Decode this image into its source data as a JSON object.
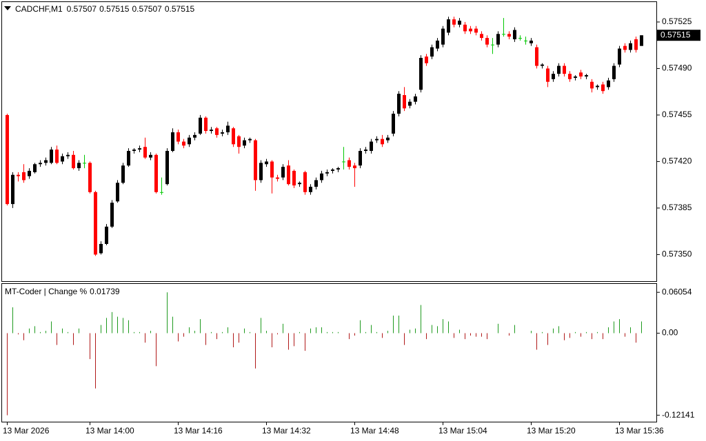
{
  "chart_data": [
    {
      "type": "candlestick",
      "title": "CADCHF,M1",
      "categories": [
        "13 Mar 2026",
        null,
        null,
        null,
        null,
        null,
        null,
        null,
        null,
        null,
        null,
        null,
        null,
        null,
        null,
        "13 Mar 14:00",
        null,
        null,
        null,
        null,
        null,
        null,
        null,
        null,
        null,
        null,
        null,
        null,
        null,
        null,
        null,
        "13 Mar 14:16",
        null,
        null,
        null,
        null,
        null,
        null,
        null,
        null,
        null,
        null,
        null,
        null,
        null,
        null,
        null,
        "13 Mar 14:32",
        null,
        null,
        null,
        null,
        null,
        null,
        null,
        null,
        null,
        null,
        null,
        null,
        null,
        null,
        null,
        "13 Mar 14:48",
        null,
        null,
        null,
        null,
        null,
        null,
        null,
        null,
        null,
        null,
        null,
        null,
        null,
        null,
        null,
        "13 Mar 15:04",
        null,
        null,
        null,
        null,
        null,
        null,
        null,
        null,
        null,
        null,
        null,
        null,
        null,
        null,
        null,
        "13 Mar 15:20",
        null,
        null,
        null,
        null,
        null,
        null,
        null,
        null,
        null,
        null,
        null,
        null,
        null,
        null,
        null,
        "13 Mar 15:36",
        null,
        null,
        null,
        null
      ],
      "open": [
        0.57455,
        0.57388,
        0.5741,
        0.57412,
        0.57409,
        0.57412,
        0.57418,
        0.57419,
        0.57419,
        0.57429,
        0.5742,
        0.57424,
        0.57425,
        0.57415,
        0.57419,
        0.57419,
        0.57397,
        0.57351,
        0.57358,
        0.57371,
        0.5739,
        0.57404,
        0.57417,
        0.57428,
        0.57429,
        0.57431,
        0.57423,
        0.57425,
        0.57397,
        0.57403,
        0.57428,
        0.57442,
        0.57435,
        0.57433,
        0.57438,
        0.57441,
        0.57453,
        0.57443,
        0.57445,
        0.57441,
        0.57442,
        0.57445,
        0.57439,
        0.57432,
        0.57436,
        0.57436,
        0.57406,
        0.57418,
        0.5742,
        0.57408,
        0.57408,
        0.57417,
        0.57413,
        0.57403,
        0.57412,
        0.57397,
        0.57401,
        0.57406,
        0.57411,
        0.57413,
        0.57414,
        0.5742,
        0.57421,
        0.57417,
        0.57417,
        0.57428,
        0.57428,
        0.57436,
        0.57437,
        0.57436,
        0.57441,
        0.57456,
        0.5747,
        0.57462,
        0.57465,
        0.57474,
        0.57499,
        0.57499,
        0.57505,
        0.57508,
        0.57517,
        0.57527,
        0.57523,
        0.57523,
        0.5752,
        0.5752,
        0.57516,
        0.57513,
        0.57508,
        0.57508,
        0.57516,
        0.57516,
        0.57512,
        0.57513,
        0.57511,
        0.57509,
        0.57506,
        0.57492,
        0.5749,
        0.57482,
        0.57486,
        0.57492,
        0.57486,
        0.57483,
        0.57487,
        0.57484,
        0.5748,
        0.57476,
        0.57478,
        0.57476,
        0.57482,
        0.57493,
        0.57507,
        0.57504,
        0.57512,
        0.57507
      ],
      "high": [
        0.57456,
        0.57412,
        0.57412,
        0.57418,
        0.57415,
        0.57419,
        0.57421,
        0.57423,
        0.57431,
        0.57432,
        0.57426,
        0.57427,
        0.57428,
        0.57421,
        0.57425,
        0.5742,
        0.57398,
        0.5736,
        0.57373,
        0.57391,
        0.57406,
        0.57419,
        0.5743,
        0.5743,
        0.57432,
        0.57438,
        0.57427,
        0.57426,
        0.57408,
        0.5743,
        0.57445,
        0.57444,
        0.57437,
        0.5744,
        0.57442,
        0.57455,
        0.57454,
        0.57446,
        0.57446,
        0.57444,
        0.5745,
        0.57446,
        0.5744,
        0.57438,
        0.57438,
        0.57437,
        0.57421,
        0.57422,
        0.57421,
        0.5741,
        0.57418,
        0.57421,
        0.57414,
        0.57405,
        0.57413,
        0.57403,
        0.57408,
        0.57413,
        0.57414,
        0.57415,
        0.57416,
        0.57431,
        0.57423,
        0.57419,
        0.5743,
        0.57431,
        0.57437,
        0.57439,
        0.5744,
        0.5744,
        0.57458,
        0.57473,
        0.57476,
        0.57467,
        0.57471,
        0.575,
        0.57501,
        0.57508,
        0.57513,
        0.57522,
        0.57529,
        0.57529,
        0.57528,
        0.57525,
        0.57522,
        0.57522,
        0.57518,
        0.57515,
        0.57513,
        0.57518,
        0.57528,
        0.57518,
        0.57521,
        0.57515,
        0.57514,
        0.57513,
        0.57508,
        0.57494,
        0.57492,
        0.57488,
        0.57494,
        0.57494,
        0.57488,
        0.57485,
        0.57489,
        0.57486,
        0.57482,
        0.57478,
        0.5748,
        0.57483,
        0.57494,
        0.57507,
        0.57509,
        0.57511,
        0.57514,
        0.57515
      ],
      "low": [
        0.57387,
        0.57385,
        0.57405,
        0.57404,
        0.57407,
        0.57411,
        0.57416,
        0.57417,
        0.57418,
        0.57418,
        0.57418,
        0.57422,
        0.57414,
        0.57413,
        0.57415,
        0.57396,
        0.57349,
        0.5735,
        0.57357,
        0.5737,
        0.57389,
        0.57403,
        0.57416,
        0.57426,
        0.57427,
        0.57422,
        0.57421,
        0.57396,
        0.57395,
        0.57402,
        0.57427,
        0.57433,
        0.5743,
        0.57431,
        0.57436,
        0.5744,
        0.57441,
        0.57441,
        0.57438,
        0.57439,
        0.5744,
        0.57431,
        0.57426,
        0.5743,
        0.57434,
        0.57398,
        0.57404,
        0.57416,
        0.57396,
        0.57405,
        0.57406,
        0.57402,
        0.574,
        0.57401,
        0.57395,
        0.57395,
        0.57399,
        0.57404,
        0.57409,
        0.57411,
        0.57412,
        0.57414,
        0.57414,
        0.57401,
        0.57415,
        0.57426,
        0.57426,
        0.57434,
        0.57431,
        0.57434,
        0.57439,
        0.57454,
        0.57458,
        0.5746,
        0.57463,
        0.57472,
        0.57492,
        0.57497,
        0.57503,
        0.57506,
        0.57515,
        0.57521,
        0.57521,
        0.57516,
        0.57516,
        0.57515,
        0.57511,
        0.57506,
        0.57501,
        0.57506,
        0.57514,
        0.57512,
        0.5751,
        0.57511,
        0.57508,
        0.57507,
        0.5749,
        0.5749,
        0.57476,
        0.5748,
        0.57484,
        0.57484,
        0.5748,
        0.57481,
        0.57482,
        0.57482,
        0.57472,
        0.57474,
        0.57471,
        0.57474,
        0.5748,
        0.57491,
        0.57502,
        0.57502,
        0.57502,
        0.57507
      ],
      "close": [
        0.57388,
        0.5741,
        0.57409,
        0.57406,
        0.57413,
        0.57418,
        0.57419,
        0.57421,
        0.57429,
        0.57419,
        0.57424,
        0.57425,
        0.57415,
        0.57419,
        0.57419,
        0.57397,
        0.5735,
        0.57358,
        0.57371,
        0.57389,
        0.57404,
        0.57417,
        0.57428,
        0.57429,
        0.5743,
        0.57423,
        0.57425,
        0.57397,
        0.57397,
        0.57428,
        0.57442,
        0.57435,
        0.57432,
        0.57438,
        0.5744,
        0.57453,
        0.57443,
        0.57444,
        0.5744,
        0.57442,
        0.57447,
        0.57433,
        0.57431,
        0.57436,
        0.57437,
        0.57406,
        0.57419,
        0.5742,
        0.57408,
        0.57407,
        0.57416,
        0.57403,
        0.57402,
        0.57404,
        0.57397,
        0.57401,
        0.57406,
        0.57411,
        0.57412,
        0.57414,
        0.57415,
        0.5742,
        0.57416,
        0.57415,
        0.57428,
        0.57429,
        0.57435,
        0.57437,
        0.57433,
        0.57438,
        0.57456,
        0.57471,
        0.5746,
        0.57465,
        0.57469,
        0.57498,
        0.57494,
        0.57506,
        0.57511,
        0.5752,
        0.57527,
        0.57523,
        0.57526,
        0.57518,
        0.57518,
        0.57517,
        0.57513,
        0.57508,
        0.57508,
        0.57516,
        0.57516,
        0.57514,
        0.57519,
        0.57513,
        0.57511,
        0.57511,
        0.57492,
        0.57493,
        0.5748,
        0.57486,
        0.57492,
        0.57486,
        0.57482,
        0.57484,
        0.57484,
        0.57485,
        0.57475,
        0.57477,
        0.57473,
        0.57481,
        0.57492,
        0.57505,
        0.57504,
        0.57509,
        0.57504,
        0.57515
      ],
      "ylim": [
        0.5733,
        0.5754
      ],
      "yticks": [
        0.57525,
        {
          "value": 0.5749,
          "label": "0.57490"
        },
        0.57455,
        {
          "value": 0.5742,
          "label": "0.57420"
        },
        0.57385,
        {
          "value": 0.5735,
          "label": "0.57350"
        }
      ],
      "colors": {
        "up": "#000000",
        "down": "#ff0000",
        "doji": "#00c800"
      }
    },
    {
      "type": "bar",
      "title": "MT-Coder | Change %",
      "values": [
        -0.12141,
        0.03828,
        -0.00174,
        -0.01044,
        0.00696,
        0.01044,
        0.00174,
        0.00348,
        0.0174,
        -0.0174,
        0.00696,
        0.00174,
        -0.0174,
        0.00696,
        0,
        -0.03828,
        -0.08178,
        0.01218,
        0.02262,
        0.03132,
        0.02436,
        0.02262,
        0.01914,
        0.00174,
        0.00174,
        -0.01392,
        0.00348,
        -0.04872,
        0,
        0.06054,
        0.02436,
        -0.01218,
        -0.00522,
        0.0087,
        0.00348,
        0.02088,
        -0.0174,
        0.00174,
        -0.0087,
        0.00174,
        0.0087,
        -0.02088,
        -0.01392,
        0.00696,
        0.00174,
        -0.0522,
        0.02262,
        0.00348,
        -0.02088,
        -0.00174,
        0.01392,
        -0.02436,
        -0.01914,
        0.00174,
        -0.0261,
        0.00696,
        0.0087,
        0.0087,
        0.00174,
        0.00174,
        0.00174,
        0,
        -0.0087,
        -0.00348,
        0.01914,
        0.00174,
        0.01218,
        0.00174,
        -0.00696,
        0.00348,
        0.0261,
        0.0261,
        -0.0174,
        0.00522,
        0.00696,
        0.04176,
        -0.0087,
        0.01218,
        0.01044,
        0.02088,
        0.0174,
        -0.00696,
        0.00522,
        -0.0087,
        -0.00348,
        -0.00522,
        -0.00522,
        -0.0087,
        0,
        0.01392,
        0,
        -0.00348,
        0.01218,
        0,
        0,
        0.00348,
        -0.02436,
        0.00174,
        -0.0174,
        0.00696,
        0.01044,
        -0.01044,
        -0.00696,
        0.00174,
        -0.00522,
        0.00174,
        -0.0087,
        0.00174,
        -0.0087,
        0.0087,
        0.0174,
        0.02088,
        -0.00522,
        0.0087,
        -0.01392,
        0.01739
      ],
      "ylim": [
        -0.13,
        0.073
      ],
      "yticks": [
        0.06054,
        {
          "value": 0,
          "label": "0.00"
        },
        -0.12141
      ],
      "colors": {
        "up": "#1e9a1e",
        "down": "#b01818"
      }
    }
  ]
}
